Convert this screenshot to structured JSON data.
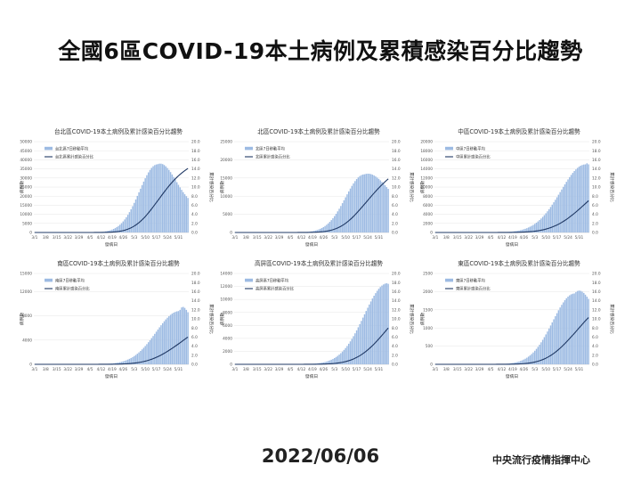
{
  "page": {
    "title": "全國6區COVID-19本土病例及累積感染百分比趨勢",
    "date": "2022/06/06",
    "org": "中央流行疫情指揮中心"
  },
  "colors": {
    "bar": "#9dbbe3",
    "line": "#1f3864",
    "grid": "#e6e6e6",
    "axis": "#bfbfbf",
    "text": "#555555"
  },
  "chart_data": [
    {
      "type": "bar",
      "title": "台北區COVID-19本土病例及累計感染百分比趨勢",
      "xlabel": "發病日",
      "ylabel": "病例數",
      "y2label": "累計感染百分比",
      "categories": [
        "3/1",
        "3/8",
        "3/15",
        "3/22",
        "3/29",
        "4/5",
        "4/12",
        "4/19",
        "4/26",
        "5/3",
        "5/10",
        "5/17",
        "5/24",
        "5/31"
      ],
      "yticks": [
        "0",
        "5000",
        "10000",
        "15000",
        "20000",
        "25000",
        "30000",
        "35000",
        "40000",
        "45000",
        "50000"
      ],
      "y2ticks": [
        "0.0",
        "2.0",
        "4.0",
        "6.0",
        "8.0",
        "10.0",
        "12.0",
        "14.0",
        "16.0",
        "18.0",
        "20.0"
      ],
      "ylim": [
        0,
        50000
      ],
      "y2lim": [
        0,
        20
      ],
      "series": [
        {
          "name": "台北區7日移動平均",
          "type": "bar",
          "peak_week": 11.1,
          "peak_value": 37500,
          "spread_before": 2.3,
          "spread_after": 2.4,
          "end_value": 19000
        },
        {
          "name": "台北區累計感染百分比",
          "type": "line",
          "end_value": 14.1
        }
      ]
    },
    {
      "type": "bar",
      "title": "北區COVID-19本土病例及累計感染百分比趨勢",
      "xlabel": "發病日",
      "ylabel": "病例數",
      "y2label": "累計感染百分比",
      "categories": [
        "3/1",
        "3/8",
        "3/15",
        "3/22",
        "3/29",
        "4/5",
        "4/12",
        "4/19",
        "4/26",
        "5/3",
        "5/10",
        "5/17",
        "5/24",
        "5/31"
      ],
      "yticks": [
        "0",
        "5000",
        "10000",
        "15000",
        "20000",
        "25000"
      ],
      "y2ticks": [
        "0.0",
        "2.0",
        "4.0",
        "6.0",
        "8.0",
        "10.0",
        "12.0",
        "14.0",
        "16.0",
        "18.0",
        "20.0"
      ],
      "ylim": [
        0,
        25000
      ],
      "y2lim": [
        0,
        20
      ],
      "series": [
        {
          "name": "北區7日移動平均",
          "type": "bar",
          "peak_week": 11.7,
          "peak_value": 16000,
          "spread_before": 2.4,
          "spread_after": 3.0,
          "end_value": 12000
        },
        {
          "name": "北區累計感染百分比",
          "type": "line",
          "end_value": 11.8
        }
      ]
    },
    {
      "type": "bar",
      "title": "中區COVID-19本土病例及累計感染百分比趨勢",
      "xlabel": "發病日",
      "ylabel": "病例數",
      "y2label": "累計感染百分比",
      "categories": [
        "3/1",
        "3/8",
        "3/15",
        "3/22",
        "3/29",
        "4/5",
        "4/12",
        "4/19",
        "4/26",
        "5/3",
        "5/10",
        "5/17",
        "5/24",
        "5/31"
      ],
      "yticks": [
        "0",
        "2000",
        "4000",
        "6000",
        "8000",
        "10000",
        "12000",
        "14000",
        "16000",
        "18000",
        "20000"
      ],
      "y2ticks": [
        "0.0",
        "2.0",
        "4.0",
        "6.0",
        "8.0",
        "10.0",
        "12.0",
        "14.0",
        "16.0",
        "18.0",
        "20.0"
      ],
      "ylim": [
        0,
        20000
      ],
      "y2lim": [
        0,
        20
      ],
      "series": [
        {
          "name": "中區7日移動平均",
          "type": "bar",
          "peak_week": 13.6,
          "peak_value": 15000,
          "spread_before": 3.2,
          "spread_after": 1.0,
          "end_value": 15000
        },
        {
          "name": "中區累計感染百分比",
          "type": "line",
          "end_value": 7.0
        }
      ]
    },
    {
      "type": "bar",
      "title": "南區COVID-19本土病例及累計感染百分比趨勢",
      "xlabel": "發病日",
      "ylabel": "病例數",
      "y2label": "累計感染百分比",
      "categories": [
        "3/1",
        "3/8",
        "3/15",
        "3/22",
        "3/29",
        "4/5",
        "4/12",
        "4/19",
        "4/26",
        "5/3",
        "5/10",
        "5/17",
        "5/24",
        "5/31"
      ],
      "yticks": [
        "0",
        "4000",
        "8000",
        "12000",
        "15000"
      ],
      "y2ticks": [
        "0.0",
        "2.0",
        "4.0",
        "6.0",
        "8.0",
        "10.0",
        "12.0",
        "14.0",
        "16.0",
        "18.0",
        "20.0"
      ],
      "ylim": [
        0,
        15000
      ],
      "y2lim": [
        0,
        20
      ],
      "series": [
        {
          "name": "南區7日移動平均",
          "type": "bar",
          "peak_week": 13.1,
          "peak_value": 8800,
          "spread_before": 3.0,
          "spread_after": 1.0,
          "end_value": 8600
        },
        {
          "name": "南區累計感染百分比",
          "type": "line",
          "end_value": 6.0
        }
      ]
    },
    {
      "type": "bar",
      "title": "高屏區COVID-19本土病例及累計感染百分比趨勢",
      "xlabel": "發病日",
      "ylabel": "病例數",
      "y2label": "累計感染百分比",
      "categories": [
        "3/1",
        "3/8",
        "3/15",
        "3/22",
        "3/29",
        "4/5",
        "4/12",
        "4/19",
        "4/26",
        "5/3",
        "5/10",
        "5/17",
        "5/24",
        "5/31"
      ],
      "yticks": [
        "0",
        "2000",
        "4000",
        "6000",
        "8000",
        "10000",
        "12000",
        "14000"
      ],
      "y2ticks": [
        "0.0",
        "2.0",
        "4.0",
        "6.0",
        "8.0",
        "10.0",
        "12.0",
        "14.0",
        "16.0",
        "18.0",
        "20.0"
      ],
      "ylim": [
        0,
        14000
      ],
      "y2lim": [
        0,
        20
      ],
      "series": [
        {
          "name": "高屏區7日移動平均",
          "type": "bar",
          "peak_week": 13.8,
          "peak_value": 12500,
          "spread_before": 3.0,
          "spread_after": 1.0,
          "end_value": 12400
        },
        {
          "name": "高屏區累計感染百分比",
          "type": "line",
          "end_value": 8.0
        }
      ]
    },
    {
      "type": "bar",
      "title": "東區COVID-19本土病例及累計感染百分比趨勢",
      "xlabel": "發病日",
      "ylabel": "病例數",
      "y2label": "累計感染百分比",
      "categories": [
        "3/1",
        "3/8",
        "3/15",
        "3/22",
        "3/29",
        "4/5",
        "4/12",
        "4/19",
        "4/26",
        "5/3",
        "5/10",
        "5/17",
        "5/24",
        "5/31"
      ],
      "yticks": [
        "0",
        "500",
        "1000",
        "1500",
        "2000",
        "2500"
      ],
      "y2ticks": [
        "0.0",
        "2.0",
        "4.0",
        "6.0",
        "8.0",
        "10.0",
        "12.0",
        "14.0",
        "16.0",
        "18.0",
        "20.0"
      ],
      "ylim": [
        0,
        2500
      ],
      "y2lim": [
        0,
        20
      ],
      "series": [
        {
          "name": "東區7日移動平均",
          "type": "bar",
          "peak_week": 12.6,
          "peak_value": 1950,
          "spread_before": 2.8,
          "spread_after": 2.0,
          "end_value": 1800
        },
        {
          "name": "東區累計感染百分比",
          "type": "line",
          "end_value": 10.3
        }
      ]
    }
  ]
}
